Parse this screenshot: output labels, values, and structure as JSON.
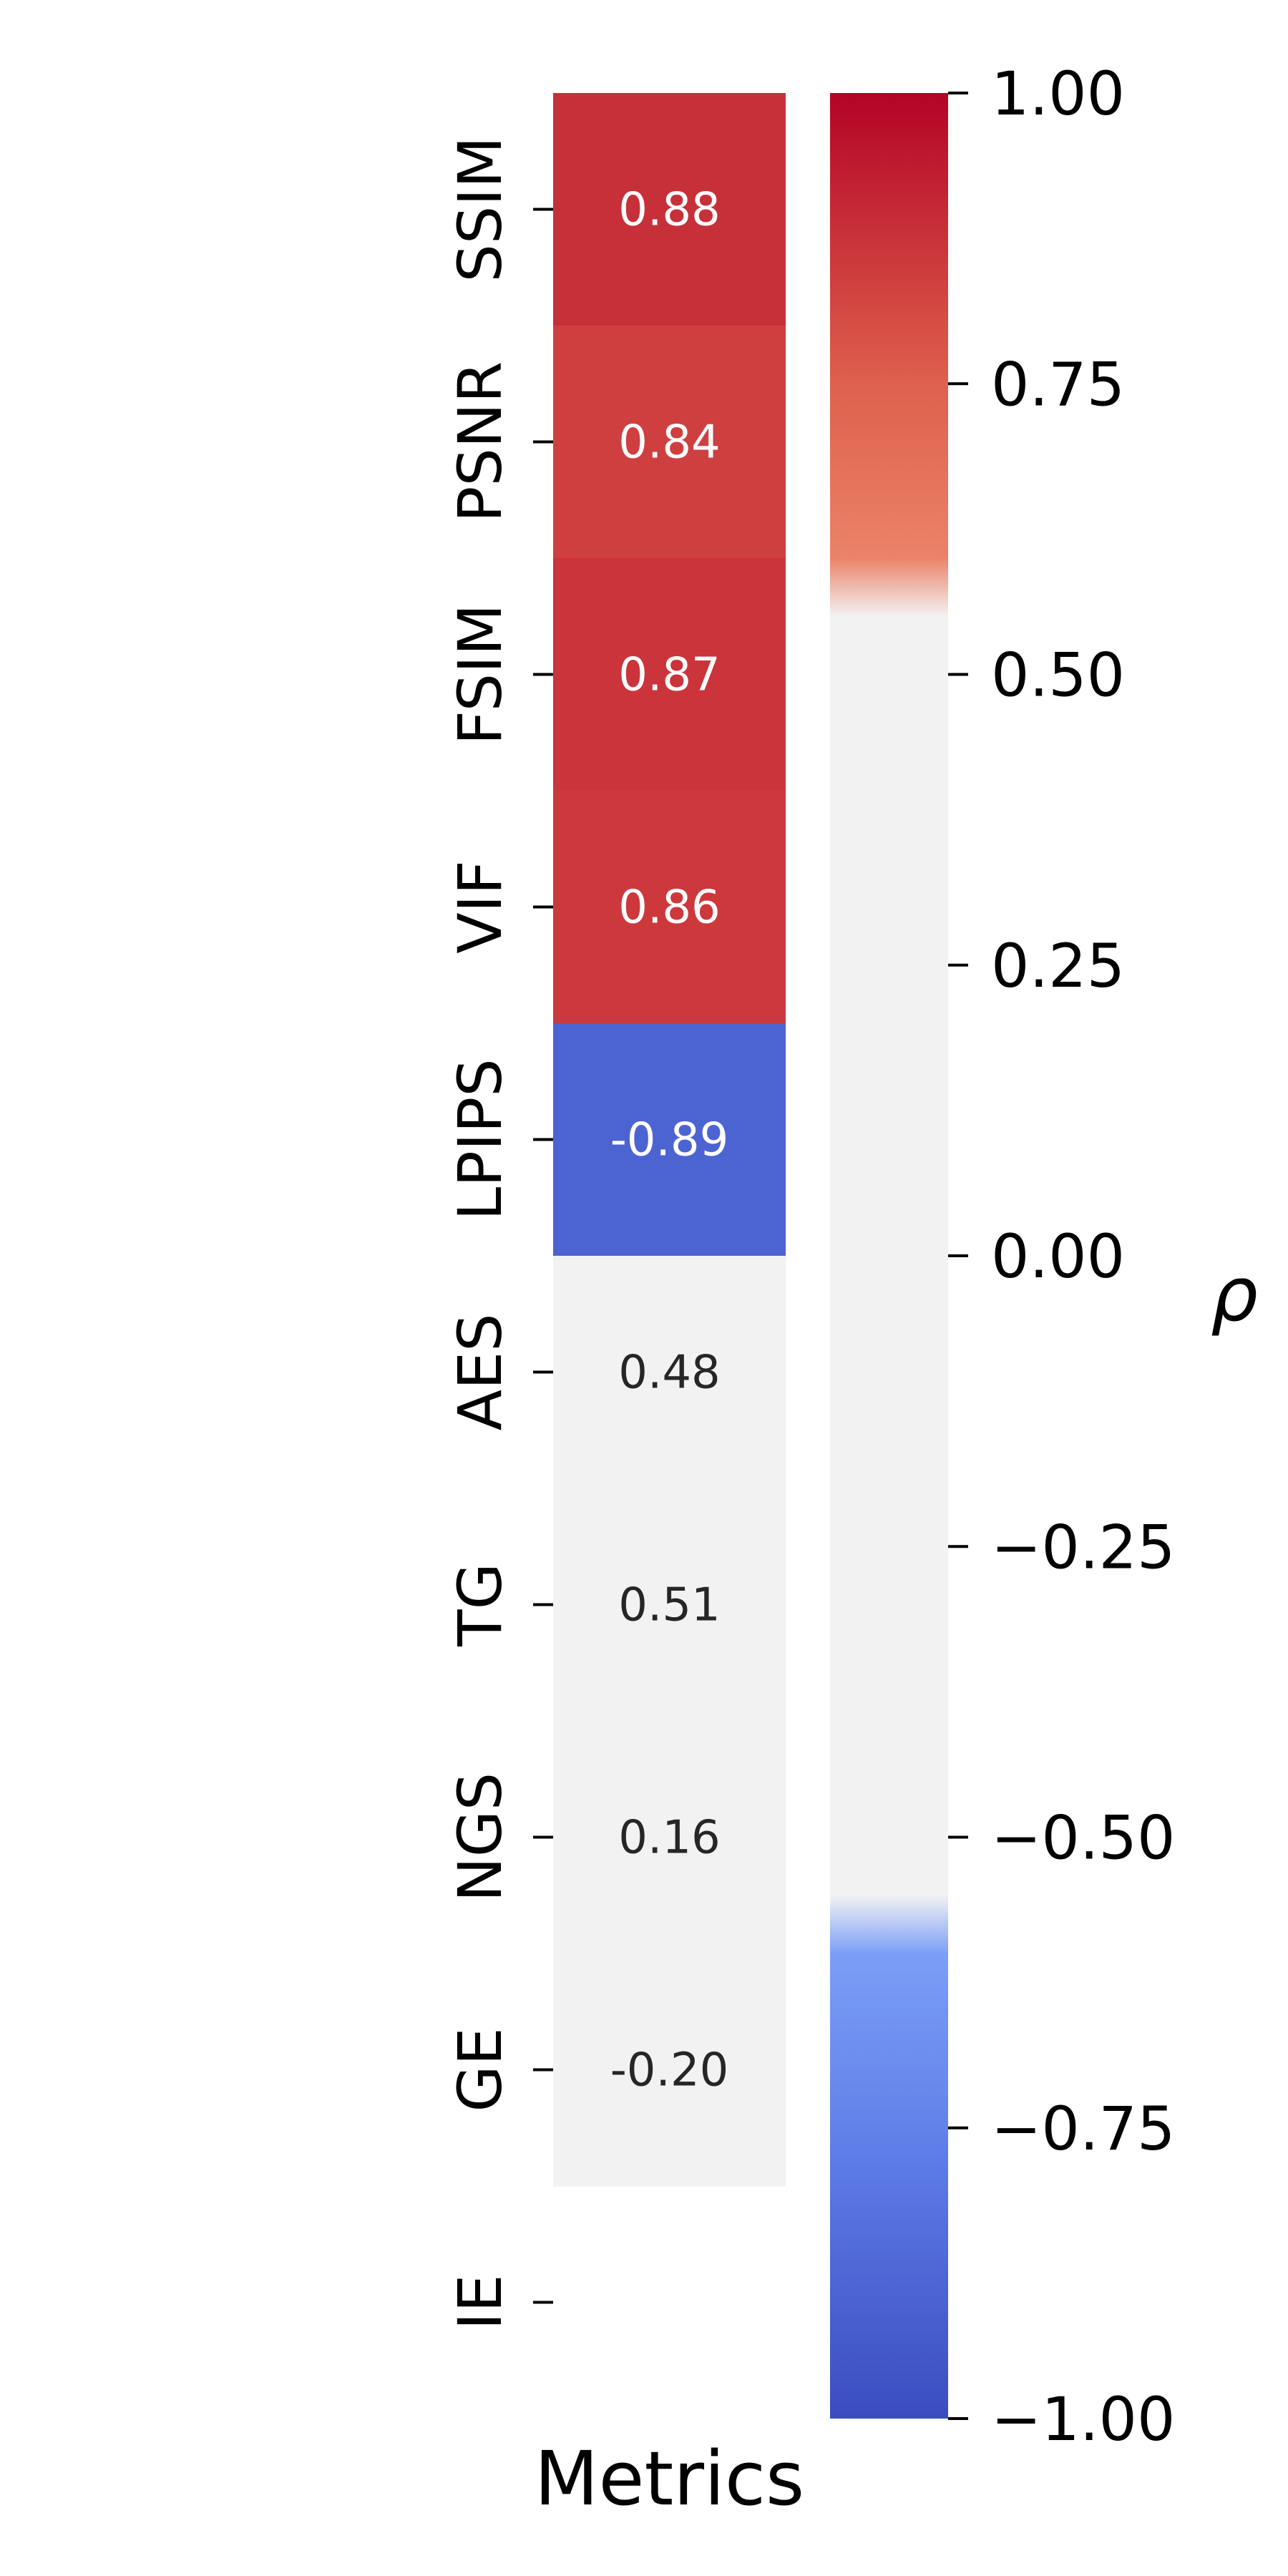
{
  "chart_data": {
    "type": "heatmap",
    "xlabel": "Metrics",
    "rows": [
      "SSIM",
      "PSNR",
      "FSIM",
      "VIF",
      "LPIPS",
      "AES",
      "TG",
      "NGS",
      "GE",
      "IE"
    ],
    "values": [
      0.88,
      0.84,
      0.87,
      0.86,
      -0.89,
      0.48,
      0.51,
      0.16,
      -0.2,
      null
    ],
    "value_labels": [
      "0.88",
      "0.84",
      "0.87",
      "0.86",
      "-0.89",
      "0.48",
      "0.51",
      "0.16",
      "-0.20",
      ""
    ],
    "colormap": "coolwarm",
    "masked_range": [
      -0.6,
      0.6
    ],
    "masked_color": "#f2f2f2",
    "colorbar": {
      "label": "ρ",
      "range": [
        -1.0,
        1.0
      ],
      "ticks": [
        1.0,
        0.75,
        0.5,
        0.25,
        0.0,
        -0.25,
        -0.5,
        -0.75,
        -1.0
      ],
      "tick_labels": [
        "1.00",
        "0.75",
        "0.50",
        "0.25",
        "0.00",
        "−0.25",
        "−0.50",
        "−0.75",
        "−1.00"
      ]
    }
  }
}
